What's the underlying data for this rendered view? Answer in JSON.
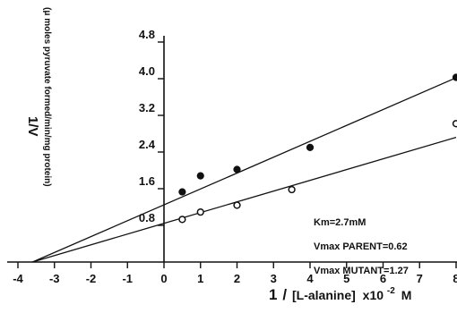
{
  "chart_data": {
    "type": "line",
    "title": "",
    "xlabel": {
      "numerator": "1",
      "denominator": "[L-alanine]",
      "factor_base": "x10",
      "factor_exp": "-2",
      "unit": "M"
    },
    "ylabel": {
      "main": "1/V",
      "sub": "(μ moles pyruvate formed/min/mg protein)"
    },
    "xlim": [
      -4.2,
      8.1
    ],
    "ylim": [
      0,
      4.9
    ],
    "xticks": [
      "-4",
      "-3",
      "-2",
      "-1",
      "0",
      "1",
      "2",
      "3",
      "4",
      "5",
      "6",
      "7",
      "8"
    ],
    "yticks": [
      "0.8",
      "1.6",
      "2.4",
      "3.2",
      "4.0",
      "4.8"
    ],
    "grid": false,
    "series": [
      {
        "marker": "filled-circle",
        "points": [
          {
            "x": 0.5,
            "y": 1.53
          },
          {
            "x": 1.0,
            "y": 1.88
          },
          {
            "x": 2.0,
            "y": 2.02
          },
          {
            "x": 4.0,
            "y": 2.5
          },
          {
            "x": 8.0,
            "y": 4.03
          }
        ],
        "fit": {
          "x1": -3.6,
          "y1": 0.0,
          "x2": 8.0,
          "y2": 4.02
        }
      },
      {
        "marker": "open-circle",
        "points": [
          {
            "x": 0.5,
            "y": 0.93
          },
          {
            "x": 1.0,
            "y": 1.09
          },
          {
            "x": 2.0,
            "y": 1.24
          },
          {
            "x": 3.5,
            "y": 1.58
          },
          {
            "x": 8.0,
            "y": 3.02
          }
        ],
        "fit": {
          "x1": -3.6,
          "y1": 0.0,
          "x2": 8.0,
          "y2": 2.72
        }
      }
    ],
    "annotations": [
      "Km=2.7mM",
      "Vmax PARENT=0.62",
      "Vmax MUTANT=1.27"
    ]
  }
}
